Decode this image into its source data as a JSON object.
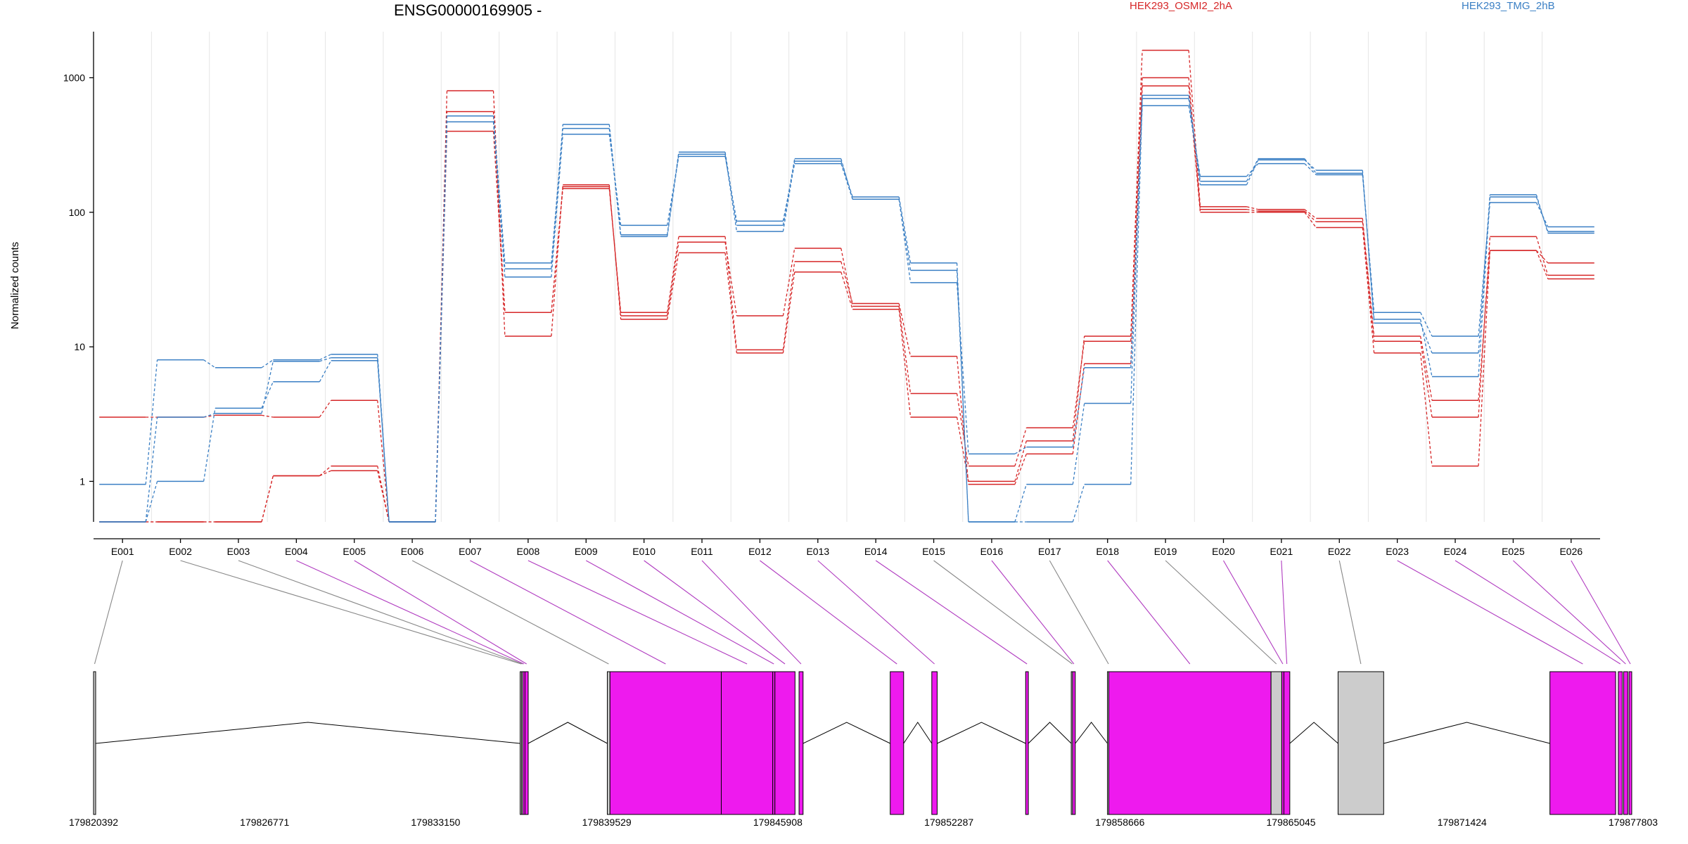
{
  "chart_data": {
    "type": "line",
    "title": "ENSG00000169905 -",
    "ylabel": "Normalized counts",
    "y_scale": "log",
    "ylim": [
      0.5,
      2200
    ],
    "grid": "vertical",
    "yticks": [
      {
        "value": 1,
        "label": "1"
      },
      {
        "value": 10,
        "label": "10"
      },
      {
        "value": 100,
        "label": "100"
      },
      {
        "value": 1000,
        "label": "1000"
      }
    ],
    "categories": [
      "E001",
      "E002",
      "E003",
      "E004",
      "E005",
      "E006",
      "E007",
      "E008",
      "E009",
      "E010",
      "E011",
      "E012",
      "E013",
      "E014",
      "E015",
      "E016",
      "E017",
      "E018",
      "E019",
      "E020",
      "E021",
      "E022",
      "E023",
      "E024",
      "E025",
      "E026"
    ],
    "legend": [
      {
        "label": "HEK293_OSMI2_2hA",
        "color": "#d62728"
      },
      {
        "label": "HEK293_TMG_2hB",
        "color": "#3a7fc4"
      }
    ],
    "series": [
      {
        "group": 0,
        "values": [
          3,
          3,
          3.1,
          3,
          4,
          0.5,
          800,
          12,
          160,
          16,
          50,
          9,
          36,
          19,
          3,
          1,
          2,
          12,
          1600,
          110,
          105,
          90,
          12,
          4,
          52,
          42
        ]
      },
      {
        "group": 0,
        "values": [
          0.5,
          0.5,
          0.5,
          1.1,
          1.3,
          0.5,
          560,
          18,
          155,
          17,
          60,
          17,
          54,
          20,
          4.5,
          1.3,
          2.5,
          11,
          1000,
          105,
          102,
          85,
          11,
          3,
          66,
          34
        ]
      },
      {
        "group": 0,
        "values": [
          0.5,
          0.5,
          0.5,
          1.1,
          1.2,
          0.5,
          400,
          18,
          150,
          18,
          66,
          9.5,
          43,
          21,
          8.5,
          0.95,
          1.6,
          7.5,
          870,
          100,
          100,
          77,
          9,
          1.3,
          52,
          32
        ]
      },
      {
        "group": 1,
        "values": [
          0.95,
          8,
          7,
          8,
          8.8,
          0.5,
          470,
          33,
          380,
          80,
          260,
          86,
          230,
          125,
          30,
          1.6,
          1.8,
          7,
          620,
          185,
          230,
          190,
          18,
          12,
          118,
          78
        ]
      },
      {
        "group": 1,
        "values": [
          0.5,
          1,
          3.5,
          5.5,
          7.9,
          0.5,
          470,
          38,
          450,
          68,
          280,
          80,
          250,
          125,
          37,
          0.5,
          0.5,
          0.95,
          700,
          170,
          250,
          195,
          16,
          6,
          130,
          72
        ]
      },
      {
        "group": 1,
        "values": [
          0.5,
          3,
          3.2,
          7.8,
          8.3,
          0.5,
          520,
          42,
          420,
          66,
          270,
          72,
          240,
          130,
          42,
          0.5,
          0.95,
          3.8,
          740,
          160,
          245,
          205,
          15,
          9,
          135,
          70
        ]
      }
    ],
    "gene_model": {
      "coordinate_ticks": [
        "179820392",
        "179826771",
        "179833150",
        "179839529",
        "179845908",
        "179852287",
        "179858666",
        "179865045",
        "179871424",
        "179877803"
      ],
      "exon_fill": "#ee1aee",
      "other_fill": "#cccccc",
      "exons": [
        {
          "id": "E001",
          "start": 179820392,
          "end": 179820450,
          "gray": true
        },
        {
          "id": "E002",
          "start": 179836300,
          "end": 179836350,
          "gray": true
        },
        {
          "id": "E003",
          "start": 179836350,
          "end": 179836400,
          "gray": true
        },
        {
          "id": "E004",
          "start": 179836400,
          "end": 179836480,
          "gray": false
        },
        {
          "id": "E005",
          "start": 179836480,
          "end": 179836600,
          "gray": false
        },
        {
          "id": "E006",
          "start": 179839550,
          "end": 179839650,
          "gray": true
        },
        {
          "id": "E007",
          "start": 179839650,
          "end": 179843800,
          "gray": false
        },
        {
          "id": "E008",
          "start": 179843800,
          "end": 179845720,
          "gray": false
        },
        {
          "id": "E009",
          "start": 179845720,
          "end": 179845800,
          "gray": false
        },
        {
          "id": "E010",
          "start": 179845800,
          "end": 179846550,
          "gray": false
        },
        {
          "id": "E011",
          "start": 179846700,
          "end": 179846850,
          "gray": false
        },
        {
          "id": "E012",
          "start": 179850100,
          "end": 179850600,
          "gray": false
        },
        {
          "id": "E013",
          "start": 179851650,
          "end": 179851850,
          "gray": false
        },
        {
          "id": "E014",
          "start": 179855150,
          "end": 179855250,
          "gray": false
        },
        {
          "id": "E015",
          "start": 179856850,
          "end": 179856900,
          "gray": true
        },
        {
          "id": "E016",
          "start": 179856900,
          "end": 179857000,
          "gray": false
        },
        {
          "id": "E017",
          "start": 179858200,
          "end": 179858250,
          "gray": true
        },
        {
          "id": "E018",
          "start": 179858250,
          "end": 179864300,
          "gray": false
        },
        {
          "id": "E019",
          "start": 179864300,
          "end": 179864700,
          "gray": true
        },
        {
          "id": "E020",
          "start": 179864700,
          "end": 179864780,
          "gray": false
        },
        {
          "id": "E021",
          "start": 179864780,
          "end": 179865000,
          "gray": false
        },
        {
          "id": "E022",
          "start": 179866800,
          "end": 179868500,
          "gray": true
        },
        {
          "id": "E023",
          "start": 179874700,
          "end": 179877150,
          "gray": false
        },
        {
          "id": "E024",
          "start": 179877250,
          "end": 179877400,
          "gray": false
        },
        {
          "id": "E025",
          "start": 179877450,
          "end": 179877600,
          "gray": false
        },
        {
          "id": "E026",
          "start": 179877650,
          "end": 179877750,
          "gray": false
        }
      ]
    }
  }
}
